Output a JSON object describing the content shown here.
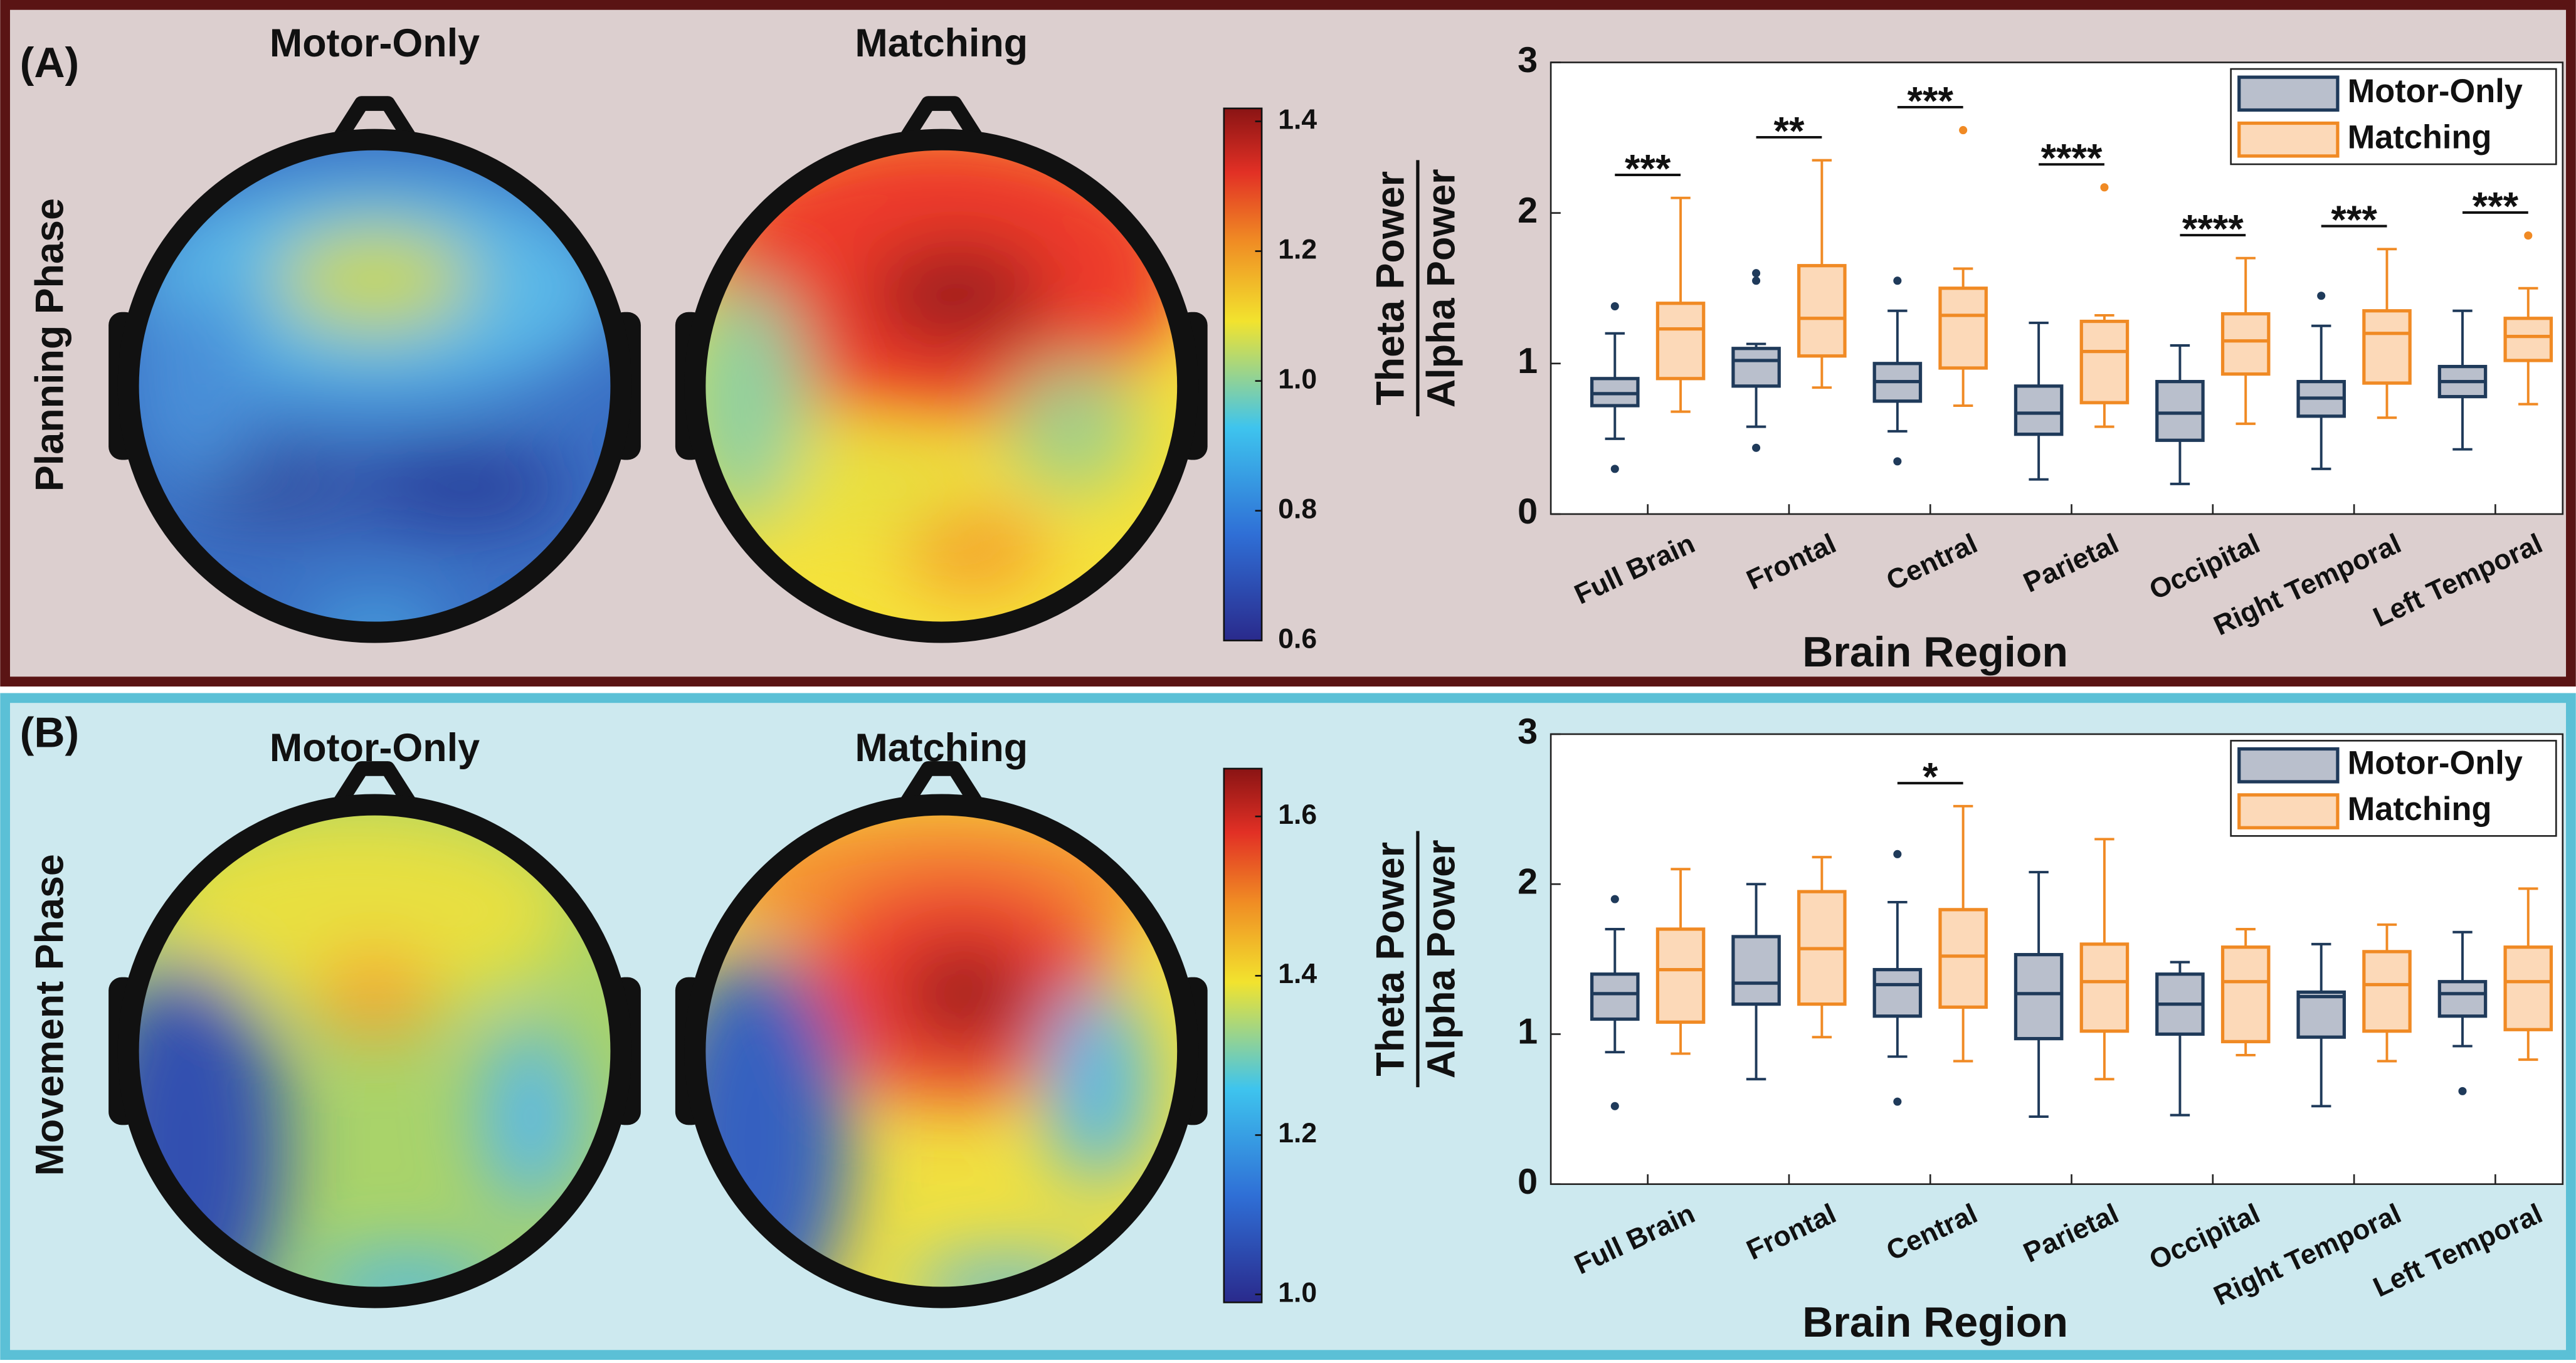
{
  "chart_data": [
    {
      "type": "box",
      "panel_label": "(A)",
      "phase": "Planning Phase",
      "topomap_titles": [
        "Motor-Only",
        "Matching"
      ],
      "colorbar_lim": [
        0.6,
        1.42
      ],
      "colorbar_ticks": [
        0.6,
        0.8,
        {
          "value": 1.0,
          "label": "1.0"
        },
        1.2,
        1.4
      ],
      "ylabel": [
        "Theta Power",
        "Alpha Power"
      ],
      "xlabel": "Brain Region",
      "categories": [
        "Full Brain",
        "Frontal",
        "Central",
        "Parietal",
        "Occipital",
        "Right Temporal",
        "Left Temporal"
      ],
      "ylim": [
        0,
        3
      ],
      "yticks": [
        0,
        1,
        2,
        3
      ],
      "legend": "upper right",
      "annotations": [
        "***",
        "**",
        "***",
        "****",
        "****",
        "***",
        "***"
      ],
      "series": [
        {
          "name": "Motor-Only",
          "color": "#b9bfcc",
          "edgecolor": "#1f3a5a",
          "boxes": [
            {
              "whislo": 0.5,
              "q1": 0.72,
              "med": 0.8,
              "q3": 0.9,
              "whishi": 1.2,
              "fliers": [
                0.3,
                1.38
              ]
            },
            {
              "whislo": 0.58,
              "q1": 0.85,
              "med": 1.02,
              "q3": 1.1,
              "whishi": 1.13,
              "fliers": [
                0.44,
                1.55,
                1.6
              ]
            },
            {
              "whislo": 0.55,
              "q1": 0.75,
              "med": 0.88,
              "q3": 1.0,
              "whishi": 1.35,
              "fliers": [
                0.35,
                1.55
              ]
            },
            {
              "whislo": 0.23,
              "q1": 0.53,
              "med": 0.67,
              "q3": 0.85,
              "whishi": 1.27,
              "fliers": []
            },
            {
              "whislo": 0.2,
              "q1": 0.49,
              "med": 0.67,
              "q3": 0.88,
              "whishi": 1.12,
              "fliers": []
            },
            {
              "whislo": 0.3,
              "q1": 0.65,
              "med": 0.77,
              "q3": 0.88,
              "whishi": 1.25,
              "fliers": [
                1.45
              ]
            },
            {
              "whislo": 0.43,
              "q1": 0.78,
              "med": 0.88,
              "q3": 0.98,
              "whishi": 1.35,
              "fliers": []
            }
          ]
        },
        {
          "name": "Matching",
          "color": "#fcd9b8",
          "edgecolor": "#f08a24",
          "boxes": [
            {
              "whislo": 0.68,
              "q1": 0.9,
              "med": 1.23,
              "q3": 1.4,
              "whishi": 2.1,
              "fliers": []
            },
            {
              "whislo": 0.84,
              "q1": 1.05,
              "med": 1.3,
              "q3": 1.65,
              "whishi": 2.35,
              "fliers": []
            },
            {
              "whislo": 0.72,
              "q1": 0.97,
              "med": 1.32,
              "q3": 1.5,
              "whishi": 1.63,
              "fliers": [
                2.55
              ]
            },
            {
              "whislo": 0.58,
              "q1": 0.74,
              "med": 1.08,
              "q3": 1.28,
              "whishi": 1.32,
              "fliers": [
                2.17
              ]
            },
            {
              "whislo": 0.6,
              "q1": 0.93,
              "med": 1.15,
              "q3": 1.33,
              "whishi": 1.7,
              "fliers": []
            },
            {
              "whislo": 0.64,
              "q1": 0.87,
              "med": 1.2,
              "q3": 1.35,
              "whishi": 1.76,
              "fliers": []
            },
            {
              "whislo": 0.73,
              "q1": 1.02,
              "med": 1.18,
              "q3": 1.3,
              "whishi": 1.5,
              "fliers": [
                1.85
              ]
            }
          ]
        }
      ]
    },
    {
      "type": "box",
      "panel_label": "(B)",
      "phase": "Movement Phase",
      "topomap_titles": [
        "Motor-Only",
        "Matching"
      ],
      "colorbar_lim": [
        0.99,
        1.66
      ],
      "colorbar_ticks": [
        {
          "value": 1.0,
          "label": "1.0"
        },
        1.2,
        1.4,
        1.6
      ],
      "ylabel": [
        "Theta Power",
        "Alpha Power"
      ],
      "xlabel": "Brain Region",
      "categories": [
        "Full Brain",
        "Frontal",
        "Central",
        "Parietal",
        "Occipital",
        "Right Temporal",
        "Left Temporal"
      ],
      "ylim": [
        0,
        3
      ],
      "yticks": [
        0,
        1,
        2,
        3
      ],
      "legend": "upper right",
      "annotations": [
        null,
        null,
        "*",
        null,
        null,
        null,
        null
      ],
      "series": [
        {
          "name": "Motor-Only",
          "color": "#b9bfcc",
          "edgecolor": "#1f3a5a",
          "boxes": [
            {
              "whislo": 0.88,
              "q1": 1.1,
              "med": 1.27,
              "q3": 1.4,
              "whishi": 1.7,
              "fliers": [
                0.52,
                1.9
              ]
            },
            {
              "whislo": 0.7,
              "q1": 1.2,
              "med": 1.34,
              "q3": 1.65,
              "whishi": 2.0,
              "fliers": []
            },
            {
              "whislo": 0.85,
              "q1": 1.12,
              "med": 1.33,
              "q3": 1.43,
              "whishi": 1.88,
              "fliers": [
                0.55,
                2.2
              ]
            },
            {
              "whislo": 0.45,
              "q1": 0.97,
              "med": 1.27,
              "q3": 1.53,
              "whishi": 2.08,
              "fliers": []
            },
            {
              "whislo": 0.46,
              "q1": 1.0,
              "med": 1.2,
              "q3": 1.4,
              "whishi": 1.48,
              "fliers": []
            },
            {
              "whislo": 0.52,
              "q1": 0.98,
              "med": 1.25,
              "q3": 1.28,
              "whishi": 1.6,
              "fliers": []
            },
            {
              "whislo": 0.92,
              "q1": 1.12,
              "med": 1.27,
              "q3": 1.35,
              "whishi": 1.68,
              "fliers": [
                0.62
              ]
            }
          ]
        },
        {
          "name": "Matching",
          "color": "#fcd9b8",
          "edgecolor": "#f08a24",
          "boxes": [
            {
              "whislo": 0.87,
              "q1": 1.08,
              "med": 1.43,
              "q3": 1.7,
              "whishi": 2.1,
              "fliers": []
            },
            {
              "whislo": 0.98,
              "q1": 1.2,
              "med": 1.57,
              "q3": 1.95,
              "whishi": 2.18,
              "fliers": []
            },
            {
              "whislo": 0.82,
              "q1": 1.18,
              "med": 1.52,
              "q3": 1.83,
              "whishi": 2.52,
              "fliers": []
            },
            {
              "whislo": 0.7,
              "q1": 1.02,
              "med": 1.35,
              "q3": 1.6,
              "whishi": 2.3,
              "fliers": []
            },
            {
              "whislo": 0.86,
              "q1": 0.95,
              "med": 1.35,
              "q3": 1.58,
              "whishi": 1.7,
              "fliers": []
            },
            {
              "whislo": 0.82,
              "q1": 1.02,
              "med": 1.33,
              "q3": 1.55,
              "whishi": 1.73,
              "fliers": []
            },
            {
              "whislo": 0.83,
              "q1": 1.03,
              "med": 1.35,
              "q3": 1.58,
              "whishi": 1.97,
              "fliers": []
            }
          ]
        }
      ]
    }
  ]
}
